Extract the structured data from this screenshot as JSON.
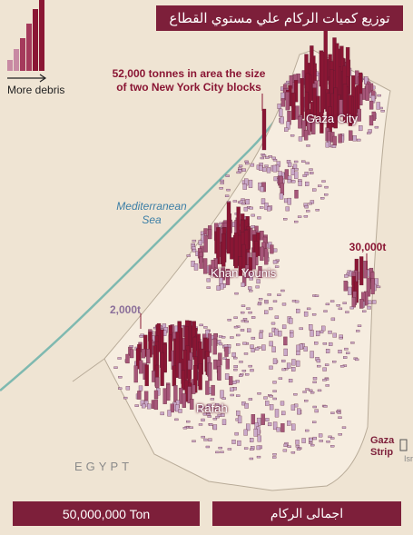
{
  "title": "توزيع كميات الركام علي مستوي القطاع",
  "legend": {
    "caption": "More debris",
    "bar_levels": [
      0.15,
      0.3,
      0.45,
      0.65,
      0.85,
      1.0
    ]
  },
  "annotations": {
    "max_callout": "52,000 tonnes in area the size of two New York City blocks",
    "mid_callout": "30,000t",
    "low_callout": "2,000t"
  },
  "places": {
    "gaza_city": "Gaza City",
    "khan_younis": "Khan Younis",
    "rafah": "Rafah",
    "sea": "Mediterranean Sea",
    "egypt": "EGYPT",
    "gaza_strip": "Gaza Strip",
    "israel_abbrev": "Isr"
  },
  "footer": {
    "total_value": "50,000,000 Ton",
    "total_label": "اجمالى الركام"
  },
  "colors": {
    "background": "#efe4d3",
    "accent": "#7d1f3a",
    "bar_dark": "#8a1634",
    "bar_light": "#c9a9c9",
    "coast": "#7fb9b0",
    "sea_label": "#3d7fa6"
  }
}
